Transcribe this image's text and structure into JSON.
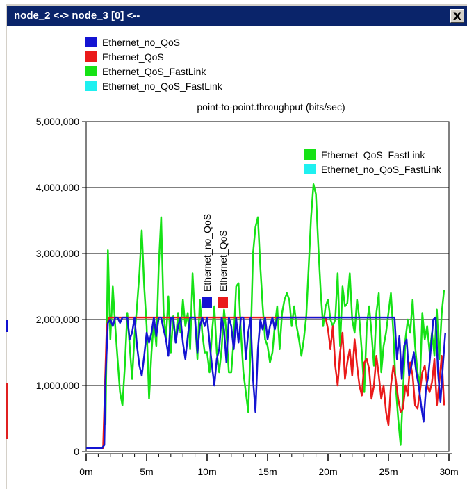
{
  "window": {
    "title": "node_2 <-> node_3 [0] <--",
    "close_label": "X"
  },
  "legend": [
    {
      "name": "Ethernet_no_QoS",
      "color": "#1414d2"
    },
    {
      "name": "Ethernet_QoS",
      "color": "#ea1a1a"
    },
    {
      "name": "Ethernet_QoS_FastLink",
      "color": "#16e216"
    },
    {
      "name": "Ethernet_no_QoS_FastLink",
      "color": "#1ef0f0"
    }
  ],
  "chart_data": {
    "type": "line",
    "title": "point-to-point.throughput (bits/sec)",
    "xlabel": "",
    "ylabel": "",
    "xlim": [
      0,
      30
    ],
    "ylim": [
      0,
      5000000
    ],
    "x_tick_labels": [
      "0m",
      "5m",
      "10m",
      "15m",
      "20m",
      "25m",
      "30m"
    ],
    "x_tick_values": [
      0,
      5,
      10,
      15,
      20,
      25,
      30
    ],
    "y_tick_labels": [
      "0",
      "1,000,000",
      "2,000,000",
      "3,000,000",
      "4,000,000",
      "5,000,000"
    ],
    "y_tick_values": [
      0,
      1000000,
      2000000,
      3000000,
      4000000,
      5000000
    ],
    "grid": "horizontal",
    "inline_labels": [
      {
        "text": "Ethernet_QoS_FastLink",
        "color": "#16e216"
      },
      {
        "text": "Ethernet_no_QoS_FastLink",
        "color": "#1ef0f0"
      },
      {
        "text": "Ethernet_no_QoS",
        "color": "#1414d2"
      },
      {
        "text": "Ethernet_QoS",
        "color": "#ea1a1a"
      }
    ],
    "series": [
      {
        "name": "Ethernet_QoS_FastLink",
        "color": "#16e216",
        "x": [
          1.6,
          1.8,
          2.0,
          2.2,
          2.4,
          2.6,
          2.8,
          3.0,
          3.2,
          3.4,
          3.6,
          3.8,
          4.0,
          4.2,
          4.4,
          4.6,
          4.8,
          5.0,
          5.2,
          5.4,
          5.6,
          5.8,
          6.0,
          6.2,
          6.4,
          6.6,
          6.8,
          7.0,
          7.2,
          7.4,
          7.6,
          7.8,
          8.0,
          8.2,
          8.4,
          8.6,
          8.8,
          9.0,
          9.2,
          9.4,
          9.6,
          9.8,
          10.0,
          10.2,
          10.4,
          10.6,
          10.8,
          11.0,
          11.2,
          11.4,
          11.6,
          11.8,
          12.0,
          12.2,
          12.4,
          12.6,
          12.8,
          13.0,
          13.2,
          13.4,
          13.6,
          13.8,
          14.0,
          14.2,
          14.4,
          14.6,
          14.8,
          15.0,
          15.2,
          15.4,
          15.6,
          15.8,
          16.0,
          16.2,
          16.4,
          16.6,
          16.8,
          17.0,
          17.2,
          17.4,
          17.6,
          17.8,
          18.0,
          18.2,
          18.4,
          18.6,
          18.8,
          19.0,
          19.2,
          19.4,
          19.6,
          19.8,
          20.0,
          20.2,
          20.4,
          20.6,
          20.8,
          21.0,
          21.2,
          21.4,
          21.6,
          21.8,
          22.0,
          22.2,
          22.4,
          22.6,
          22.8,
          23.0,
          23.2,
          23.4,
          23.6,
          23.8,
          24.0,
          24.2,
          24.4,
          24.6,
          24.8,
          25.0,
          25.2,
          25.4,
          25.6,
          25.8,
          26.0,
          26.2,
          26.4,
          26.6,
          26.8,
          27.0,
          27.2,
          27.4,
          27.6,
          27.8,
          28.0,
          28.2,
          28.4,
          28.6,
          28.8,
          29.0,
          29.2,
          29.4,
          29.6
        ],
        "values": [
          400000,
          3050000,
          1700000,
          2500000,
          1900000,
          1400000,
          900000,
          700000,
          1300000,
          2100000,
          1600000,
          1100000,
          1750000,
          2200000,
          2700000,
          3350000,
          2500000,
          1900000,
          800000,
          1500000,
          2000000,
          1600000,
          2800000,
          3550000,
          2100000,
          1700000,
          2350000,
          1500000,
          2050000,
          1650000,
          2100000,
          1800000,
          2300000,
          1900000,
          2100000,
          1550000,
          2700000,
          2000000,
          1400000,
          2300000,
          1800000,
          1500000,
          1500000,
          1200000,
          1800000,
          2200000,
          1500000,
          1200000,
          1550000,
          2150000,
          1800000,
          1200000,
          1200000,
          1700000,
          2500000,
          2550000,
          1800000,
          1200000,
          900000,
          600000,
          1600000,
          3000000,
          3400000,
          3550000,
          2800000,
          2200000,
          1700000,
          1600000,
          1350000,
          1500000,
          1900000,
          2200000,
          1550000,
          2100000,
          2300000,
          2400000,
          2300000,
          1900000,
          2200000,
          1900000,
          1700000,
          1450000,
          1700000,
          2050000,
          2800000,
          3550000,
          4050000,
          3900000,
          3100000,
          2400000,
          1900000,
          2200000,
          2300000,
          2000000,
          1900000,
          2000000,
          2700000,
          1600000,
          2500000,
          2200000,
          2250000,
          2700000,
          2000000,
          1800000,
          2300000,
          2000000,
          1500000,
          900000,
          1900000,
          2200000,
          1800000,
          1300000,
          2100000,
          2400000,
          1200000,
          1600000,
          1800000,
          2100000,
          2400000,
          1800000,
          1000000,
          500000,
          100000,
          900000,
          1700000,
          2000000,
          1800000,
          2300000,
          1600000,
          1200000,
          1000000,
          2100000,
          1700000,
          1900000,
          1500000,
          1800000,
          1450000,
          2150000,
          1400000,
          2100000,
          2450000
        ]
      },
      {
        "name": "Ethernet_QoS",
        "color": "#ea1a1a",
        "x": [
          0,
          1.4,
          1.7,
          1.9,
          2.1,
          19.8,
          20.0,
          20.2,
          20.4,
          20.6,
          20.8,
          21.0,
          21.2,
          21.4,
          21.6,
          21.8,
          22.0,
          22.2,
          22.4,
          22.6,
          22.8,
          23.0,
          23.2,
          23.4,
          23.6,
          23.8,
          24.0,
          24.2,
          24.4,
          24.6,
          24.8,
          25.0,
          25.2,
          25.4,
          25.6,
          25.8,
          26.0,
          26.2,
          26.4,
          26.6,
          26.8,
          27.0,
          27.2,
          27.4,
          27.6,
          27.8,
          28.0,
          28.2,
          28.4,
          28.6,
          28.8,
          29.0,
          29.2,
          29.4,
          29.6
        ],
        "values": [
          50000,
          50000,
          1900000,
          2030000,
          2030000,
          2030000,
          1850000,
          1550000,
          1900000,
          1300000,
          1000000,
          1500000,
          1800000,
          1100000,
          1350000,
          1550000,
          1150000,
          1700000,
          1300000,
          1000000,
          850000,
          1350000,
          1400000,
          1250000,
          800000,
          1000000,
          1450000,
          1150000,
          800000,
          1000000,
          600000,
          400000,
          1000000,
          1300000,
          1100000,
          800000,
          600000,
          650000,
          1000000,
          850000,
          1350000,
          1150000,
          700000,
          650000,
          900000,
          1200000,
          1300000,
          1000000,
          900000,
          1050000,
          1400000,
          700000,
          1050000,
          1450000,
          700000
        ]
      },
      {
        "name": "Ethernet_no_QoS",
        "color": "#1414d2",
        "x": [
          0,
          1.3,
          1.5,
          1.6,
          1.8,
          2.0,
          2.2,
          2.4,
          2.6,
          2.8,
          3.0,
          3.2,
          3.4,
          3.6,
          3.8,
          4.0,
          4.2,
          4.4,
          4.6,
          4.8,
          5.0,
          5.2,
          5.4,
          5.6,
          5.8,
          6.0,
          6.2,
          6.4,
          6.6,
          6.8,
          7.0,
          7.2,
          7.4,
          7.6,
          7.8,
          8.0,
          8.2,
          8.4,
          8.6,
          8.8,
          9.0,
          9.2,
          9.4,
          9.6,
          9.8,
          10.0,
          10.2,
          10.4,
          10.6,
          10.8,
          11.0,
          11.2,
          11.4,
          11.6,
          11.8,
          12.0,
          12.2,
          12.4,
          12.6,
          12.8,
          13.0,
          13.2,
          13.4,
          13.6,
          13.8,
          14.0,
          14.2,
          14.4,
          14.6,
          14.8,
          15.0,
          15.2,
          15.4,
          15.6,
          15.8,
          16.0,
          16.5,
          17.0,
          18.0,
          19.0,
          20.0,
          21.0,
          22.0,
          23.0,
          24.0,
          25.0,
          25.5,
          25.7,
          25.9,
          26.1,
          26.3,
          26.5,
          26.7,
          26.9,
          27.1,
          27.3,
          27.5,
          27.7,
          27.9,
          28.1,
          28.3,
          28.5,
          28.7,
          28.9,
          29.1,
          29.3,
          29.5,
          29.7
        ],
        "values": [
          50000,
          50000,
          100000,
          1100000,
          1950000,
          2000000,
          1900000,
          2030000,
          2030000,
          1950000,
          2030000,
          2030000,
          2030000,
          1700000,
          1800000,
          2030000,
          1600000,
          1300000,
          1150000,
          1450000,
          1800000,
          1650000,
          1800000,
          2030000,
          1750000,
          2030000,
          2030000,
          1850000,
          1700000,
          1450000,
          2030000,
          2030000,
          1650000,
          1900000,
          2030000,
          1650000,
          1400000,
          1750000,
          2030000,
          2030000,
          2030000,
          1500000,
          1900000,
          2030000,
          1900000,
          2030000,
          1650000,
          1300000,
          1000000,
          1400000,
          1550000,
          2030000,
          1850000,
          1350000,
          2030000,
          1900000,
          1550000,
          2030000,
          1650000,
          2030000,
          2030000,
          1400000,
          1800000,
          2030000,
          1100000,
          600000,
          1550000,
          2000000,
          1850000,
          2030000,
          1700000,
          1900000,
          2030000,
          1850000,
          2030000,
          2030000,
          2030000,
          2030000,
          2030000,
          2030000,
          2030000,
          2030000,
          2030000,
          2030000,
          2030000,
          2030000,
          2030000,
          1400000,
          1750000,
          1100000,
          1600000,
          1700000,
          1150000,
          1300000,
          1500000,
          1200000,
          1000000,
          700000,
          450000,
          950000,
          1150000,
          1550000,
          2000000,
          2030000,
          1200000,
          750000,
          1300000,
          1800000
        ]
      },
      {
        "name": "Ethernet_no_QoS_FastLink",
        "color": "#1ef0f0",
        "x": [],
        "values": []
      }
    ]
  }
}
